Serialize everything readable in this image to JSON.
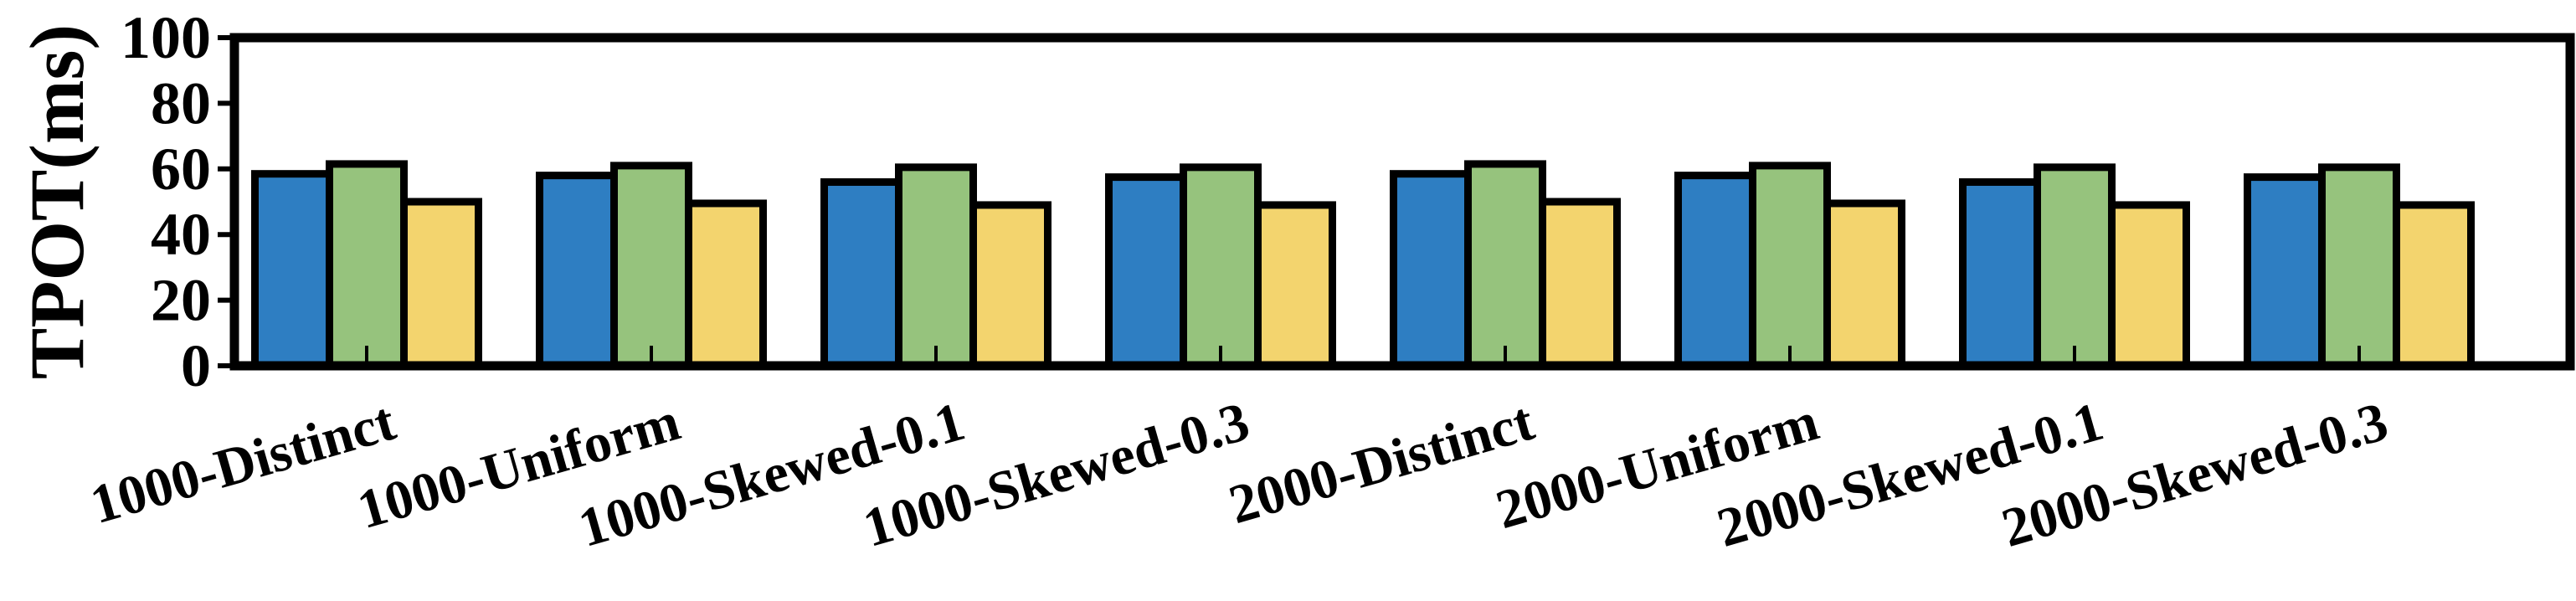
{
  "chart_data": {
    "type": "bar",
    "title": "",
    "xlabel": "",
    "ylabel": "TPOT(ms)",
    "ylim": [
      0,
      100
    ],
    "yticks": [
      0,
      20,
      40,
      60,
      80,
      100
    ],
    "grid": false,
    "legend": "none",
    "categories": [
      "1000-Distinct",
      "1000-Uniform",
      "1000-Skewed-0.1",
      "1000-Skewed-0.3",
      "2000-Distinct",
      "2000-Uniform",
      "2000-Skewed-0.1",
      "2000-Skewed-0.3"
    ],
    "series": [
      {
        "color": "#2e7ec2",
        "values": [
          58.5,
          58.0,
          56.0,
          57.5,
          58.5,
          58.0,
          56.0,
          57.5
        ]
      },
      {
        "color": "#96c37d",
        "values": [
          61.5,
          61.0,
          60.5,
          60.5,
          61.5,
          61.0,
          60.5,
          60.5
        ]
      },
      {
        "color": "#f3d46e",
        "values": [
          50.0,
          49.5,
          49.0,
          49.0,
          50.0,
          49.5,
          49.0,
          49.0
        ]
      }
    ]
  }
}
